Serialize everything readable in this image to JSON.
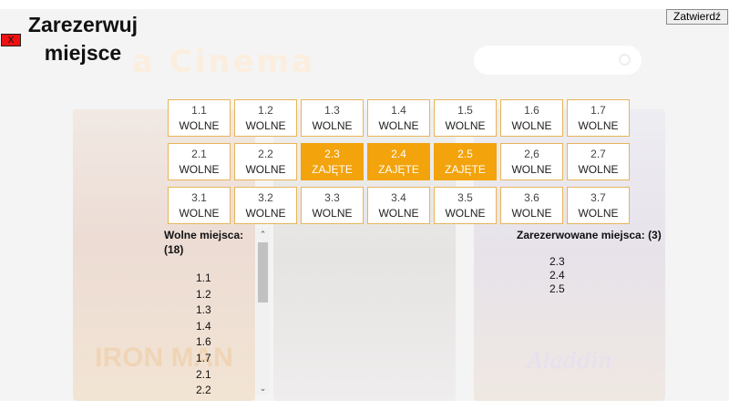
{
  "title": "Zarezerwuj miejsce",
  "close_label": "X",
  "confirm_label": "Zatwierdź",
  "background": {
    "logo_text": "a Cinema",
    "posters": [
      {
        "title": "IRON MAN"
      },
      {
        "title": ""
      },
      {
        "title": "Aladdin"
      }
    ]
  },
  "seats": [
    {
      "number": "1.1",
      "status": "WOLNE"
    },
    {
      "number": "1.2",
      "status": "WOLNE"
    },
    {
      "number": "1.3",
      "status": "WOLNE"
    },
    {
      "number": "1.4",
      "status": "WOLNE"
    },
    {
      "number": "1.5",
      "status": "WOLNE"
    },
    {
      "number": "1.6",
      "status": "WOLNE"
    },
    {
      "number": "1.7",
      "status": "WOLNE"
    },
    {
      "number": "2.1",
      "status": "WOLNE"
    },
    {
      "number": "2.2",
      "status": "WOLNE"
    },
    {
      "number": "2.3",
      "status": "ZAJĘTE"
    },
    {
      "number": "2.4",
      "status": "ZAJĘTE"
    },
    {
      "number": "2.5",
      "status": "ZAJĘTE"
    },
    {
      "number": "2,6",
      "status": "WOLNE"
    },
    {
      "number": "2.7",
      "status": "WOLNE"
    },
    {
      "number": "3.1",
      "status": "WOLNE"
    },
    {
      "number": "3.2",
      "status": "WOLNE"
    },
    {
      "number": "3.3",
      "status": "WOLNE"
    },
    {
      "number": "3.4",
      "status": "WOLNE"
    },
    {
      "number": "3.5",
      "status": "WOLNE"
    },
    {
      "number": "3.6",
      "status": "WOLNE"
    },
    {
      "number": "3.7",
      "status": "WOLNE"
    }
  ],
  "free_seats": {
    "heading": "Wolne miejsca:",
    "count": "(18)",
    "items": [
      "1.1",
      "1.2",
      "1.3",
      "1.4",
      "1.6",
      "1.7",
      "2.1",
      "2.2"
    ]
  },
  "reserved_seats": {
    "heading": "Zarezerwowane miejsca: (3)",
    "items": [
      "2.3",
      "2.4",
      "2.5"
    ]
  },
  "colors": {
    "taken": "#f3a30c",
    "free_border": "#e8b45a",
    "close_button": "#ee1111"
  }
}
